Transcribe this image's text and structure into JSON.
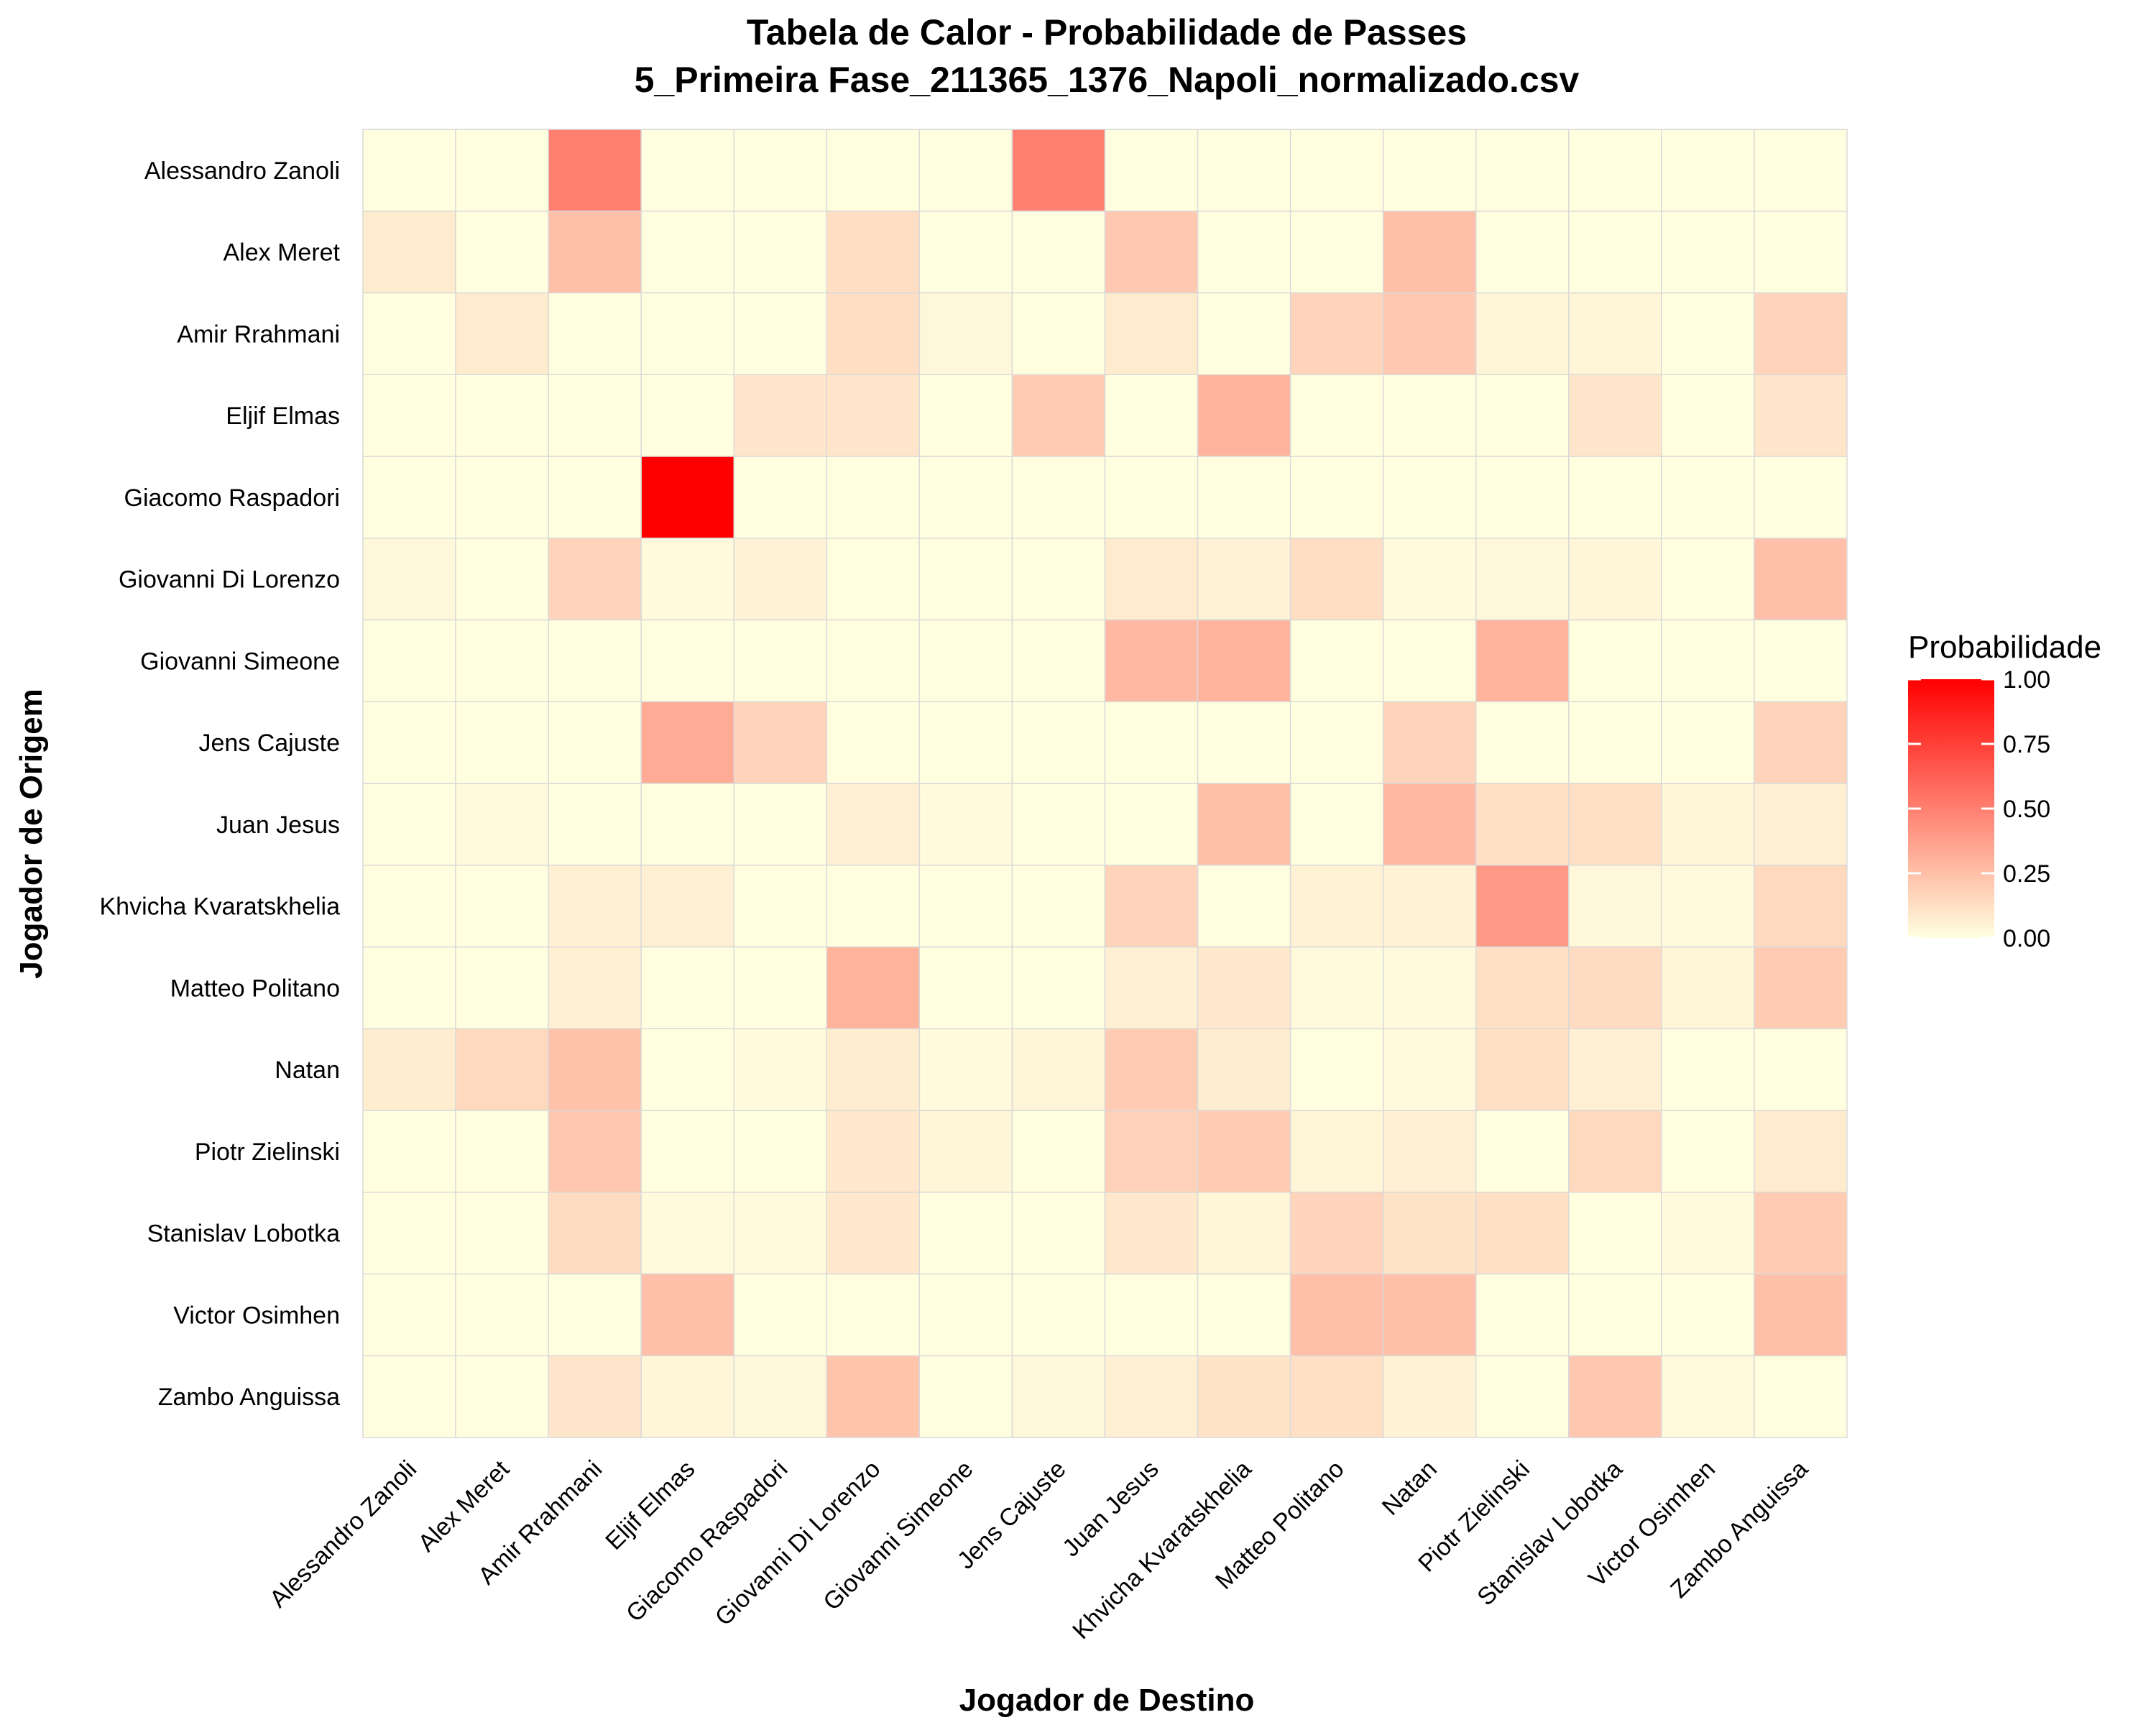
{
  "chart_data": {
    "type": "heatmap",
    "title": "Tabela de Calor - Probabilidade de Passes",
    "subtitle": "5_Primeira Fase_211365_1376_Napoli_normalizado.csv",
    "xlabel": "Jogador de Destino",
    "ylabel": "Jogador de Origem",
    "legend": {
      "title": "Probabilidade",
      "placement": "right",
      "ticks": [
        "1.00",
        "0.75",
        "0.50",
        "0.25",
        "0.00"
      ],
      "range": [
        0,
        1
      ],
      "color_low": "#FFFFE0",
      "color_high": "#FF0000"
    },
    "grid": true,
    "x_categories": [
      "Alessandro Zanoli",
      "Alex Meret",
      "Amir Rrahmani",
      "Eljif Elmas",
      "Giacomo Raspadori",
      "Giovanni Di Lorenzo",
      "Giovanni Simeone",
      "Jens Cajuste",
      "Juan Jesus",
      "Khvicha Kvaratskhelia",
      "Matteo Politano",
      "Natan",
      "Piotr Zielinski",
      "Stanislav Lobotka",
      "Victor Osimhen",
      "Zambo Anguissa"
    ],
    "y_categories": [
      "Alessandro Zanoli",
      "Alex Meret",
      "Amir Rrahmani",
      "Eljif Elmas",
      "Giacomo Raspadori",
      "Giovanni Di Lorenzo",
      "Giovanni Simeone",
      "Jens Cajuste",
      "Juan Jesus",
      "Khvicha Kvaratskhelia",
      "Matteo Politano",
      "Natan",
      "Piotr Zielinski",
      "Stanislav Lobotka",
      "Victor Osimhen",
      "Zambo Anguissa"
    ],
    "values": [
      [
        0.0,
        0.0,
        0.5,
        0.0,
        0.0,
        0.0,
        0.0,
        0.5,
        0.0,
        0.0,
        0.0,
        0.0,
        0.0,
        0.0,
        0.0,
        0.0
      ],
      [
        0.08,
        0.0,
        0.25,
        0.0,
        0.0,
        0.13,
        0.0,
        0.0,
        0.21,
        0.0,
        0.0,
        0.25,
        0.0,
        0.0,
        0.0,
        0.0
      ],
      [
        0.0,
        0.08,
        0.0,
        0.0,
        0.0,
        0.13,
        0.03,
        0.0,
        0.08,
        0.0,
        0.17,
        0.21,
        0.04,
        0.04,
        0.0,
        0.17
      ],
      [
        0.0,
        0.0,
        0.0,
        0.0,
        0.1,
        0.1,
        0.0,
        0.2,
        0.0,
        0.3,
        0.0,
        0.0,
        0.0,
        0.1,
        0.0,
        0.1
      ],
      [
        0.0,
        0.0,
        0.0,
        1.0,
        0.0,
        0.0,
        0.0,
        0.0,
        0.0,
        0.0,
        0.0,
        0.0,
        0.0,
        0.0,
        0.0,
        0.0
      ],
      [
        0.03,
        0.0,
        0.17,
        0.02,
        0.05,
        0.0,
        0.0,
        0.0,
        0.08,
        0.05,
        0.13,
        0.02,
        0.03,
        0.04,
        0.0,
        0.25
      ],
      [
        0.0,
        0.0,
        0.0,
        0.0,
        0.0,
        0.0,
        0.0,
        0.0,
        0.28,
        0.3,
        0.0,
        0.0,
        0.3,
        0.0,
        0.0,
        0.0
      ],
      [
        0.0,
        0.0,
        0.0,
        0.33,
        0.17,
        0.0,
        0.0,
        0.0,
        0.0,
        0.0,
        0.0,
        0.17,
        0.0,
        0.0,
        0.0,
        0.17
      ],
      [
        0.0,
        0.02,
        0.0,
        0.0,
        0.0,
        0.06,
        0.02,
        0.0,
        0.0,
        0.25,
        0.0,
        0.28,
        0.12,
        0.12,
        0.04,
        0.06
      ],
      [
        0.0,
        0.0,
        0.06,
        0.06,
        0.0,
        0.0,
        0.0,
        0.0,
        0.17,
        0.0,
        0.05,
        0.05,
        0.4,
        0.03,
        0.02,
        0.15
      ],
      [
        0.0,
        0.0,
        0.06,
        0.0,
        0.0,
        0.3,
        0.0,
        0.0,
        0.06,
        0.09,
        0.02,
        0.02,
        0.12,
        0.14,
        0.04,
        0.2
      ],
      [
        0.07,
        0.15,
        0.24,
        0.0,
        0.02,
        0.07,
        0.02,
        0.04,
        0.2,
        0.07,
        0.0,
        0.02,
        0.12,
        0.06,
        0.0,
        0.0
      ],
      [
        0.0,
        0.0,
        0.22,
        0.0,
        0.0,
        0.09,
        0.04,
        0.0,
        0.18,
        0.2,
        0.04,
        0.06,
        0.0,
        0.15,
        0.0,
        0.08
      ],
      [
        0.0,
        0.0,
        0.14,
        0.02,
        0.02,
        0.09,
        0.0,
        0.0,
        0.09,
        0.04,
        0.17,
        0.11,
        0.12,
        0.0,
        0.02,
        0.2
      ],
      [
        0.0,
        0.0,
        0.0,
        0.25,
        0.0,
        0.0,
        0.0,
        0.0,
        0.0,
        0.0,
        0.25,
        0.25,
        0.0,
        0.0,
        0.0,
        0.25
      ],
      [
        0.0,
        0.0,
        0.1,
        0.04,
        0.03,
        0.23,
        0.0,
        0.03,
        0.06,
        0.11,
        0.12,
        0.05,
        0.0,
        0.22,
        0.02,
        0.0
      ]
    ]
  }
}
